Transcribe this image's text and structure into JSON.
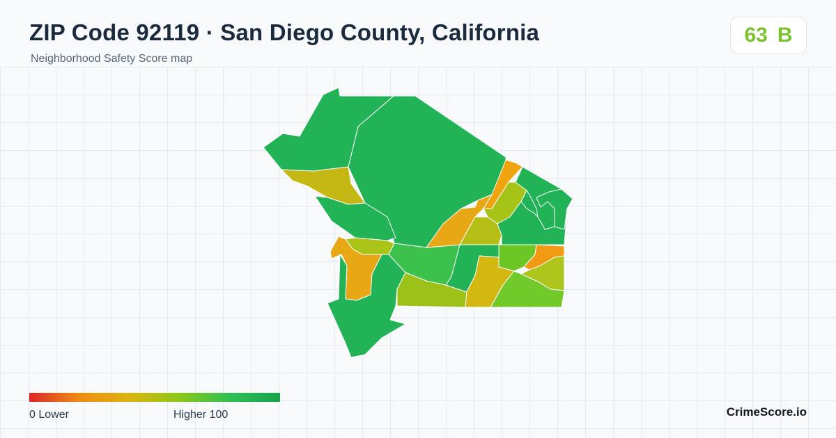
{
  "header": {
    "title": "ZIP Code 92119 · San Diego County, California",
    "subtitle": "Neighborhood Safety Score map"
  },
  "score": {
    "value": "63",
    "grade": "B",
    "color": "#7cc12f"
  },
  "legend": {
    "low_label": "0  Lower",
    "high_label": "Higher  100",
    "gradient_colors": [
      "#dc2626",
      "#f08c12",
      "#dcb40e",
      "#8cc818",
      "#2ec054",
      "#16a34a"
    ]
  },
  "brand": "CrimeScore.io",
  "map": {
    "border_color": "#ffffff",
    "regions": [
      {
        "name": "north-large-tract",
        "color": "#22b356"
      },
      {
        "name": "northwest-tract",
        "color": "#22b356"
      },
      {
        "name": "west-upper-tract",
        "color": "#c5b814"
      },
      {
        "name": "west-middle-tract",
        "color": "#22b356"
      },
      {
        "name": "central-band-tract",
        "color": "#a9c417"
      },
      {
        "name": "southwest-orange-tract",
        "color": "#e8a815"
      },
      {
        "name": "southwest-lower-tract",
        "color": "#22b356"
      },
      {
        "name": "central-tract",
        "color": "#3cc24c"
      },
      {
        "name": "south-central-tract",
        "color": "#9cc21a"
      },
      {
        "name": "east-central-tract",
        "color": "#22b356"
      },
      {
        "name": "central-orange-tract",
        "color": "#e8a815"
      },
      {
        "name": "east-olive-tract",
        "color": "#b4be16"
      },
      {
        "name": "northeast-orange-strip",
        "color": "#f0a510"
      },
      {
        "name": "northeast-lime-tract",
        "color": "#a6c418"
      },
      {
        "name": "northeast-green-tract",
        "color": "#22b356"
      },
      {
        "name": "east-lime-tract",
        "color": "#6cc726"
      },
      {
        "name": "east-orange-tract",
        "color": "#f39a14"
      },
      {
        "name": "east-yellow-tract",
        "color": "#aec51b"
      },
      {
        "name": "south-yellow-tract",
        "color": "#d4b812"
      },
      {
        "name": "southeast-lime-tract",
        "color": "#72c92a"
      },
      {
        "name": "far-east-tract",
        "color": "#22b356"
      }
    ]
  }
}
